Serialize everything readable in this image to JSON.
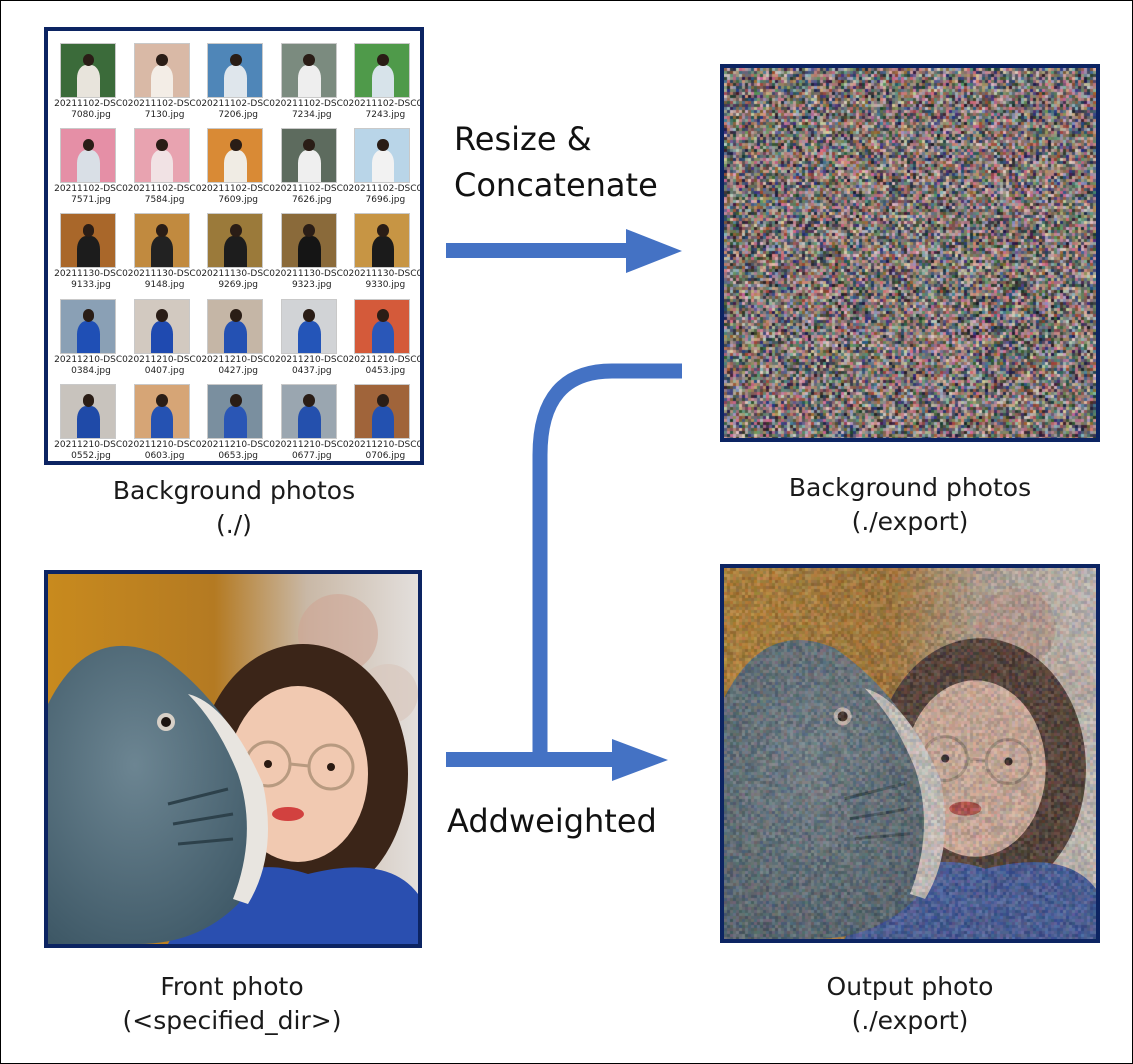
{
  "labels": {
    "resize": [
      "Resize &",
      "Concatenate"
    ],
    "addweighted": "Addweighted"
  },
  "captions": {
    "background_src": [
      "Background photos",
      "(./)"
    ],
    "background_export": [
      "Background photos",
      "(./export)"
    ],
    "front": [
      "Front photo",
      "(<specified_dir>)"
    ],
    "output": [
      "Output photo",
      "(./export)"
    ]
  },
  "thumbnails": [
    {
      "name": [
        "20211102-DSC0",
        "7080.jpg"
      ],
      "bg": "#3b6b3a",
      "fg": "#e8e4dc"
    },
    {
      "name": [
        "20211102-DSC0",
        "7130.jpg"
      ],
      "bg": "#d9b9a6",
      "fg": "#f3ede6"
    },
    {
      "name": [
        "20211102-DSC0",
        "7206.jpg"
      ],
      "bg": "#4f86b8",
      "fg": "#dfe6ec"
    },
    {
      "name": [
        "20211102-DSC0",
        "7234.jpg"
      ],
      "bg": "#7b8b7f",
      "fg": "#eeeeee"
    },
    {
      "name": [
        "20211102-DSC0",
        "7243.jpg"
      ],
      "bg": "#4f9a4a",
      "fg": "#d7e3ea"
    },
    {
      "name": [
        "20211102-DSC0",
        "7571.jpg"
      ],
      "bg": "#e58fa6",
      "fg": "#d9dfe6"
    },
    {
      "name": [
        "20211102-DSC0",
        "7584.jpg"
      ],
      "bg": "#e8a3b0",
      "fg": "#f1e2e4"
    },
    {
      "name": [
        "20211102-DSC0",
        "7609.jpg"
      ],
      "bg": "#d98a35",
      "fg": "#f0ece4"
    },
    {
      "name": [
        "20211102-DSC0",
        "7626.jpg"
      ],
      "bg": "#5d6b5e",
      "fg": "#efefef"
    },
    {
      "name": [
        "20211102-DSC0",
        "7696.jpg"
      ],
      "bg": "#b9d5e8",
      "fg": "#f2f2f2"
    },
    {
      "name": [
        "20211130-DSC0",
        "9133.jpg"
      ],
      "bg": "#a9672a",
      "fg": "#1c1c1c"
    },
    {
      "name": [
        "20211130-DSC0",
        "9148.jpg"
      ],
      "bg": "#c18a3f",
      "fg": "#222222"
    },
    {
      "name": [
        "20211130-DSC0",
        "9269.jpg"
      ],
      "bg": "#9b7a3a",
      "fg": "#1d1d1d"
    },
    {
      "name": [
        "20211130-DSC0",
        "9323.jpg"
      ],
      "bg": "#8a6a3a",
      "fg": "#151515"
    },
    {
      "name": [
        "20211130-DSC0",
        "9330.jpg"
      ],
      "bg": "#c79544",
      "fg": "#1b1b1b"
    },
    {
      "name": [
        "20211210-DSC0",
        "0384.jpg"
      ],
      "bg": "#8aa0b5",
      "fg": "#1f4fb5"
    },
    {
      "name": [
        "20211210-DSC0",
        "0407.jpg"
      ],
      "bg": "#d2c9c0",
      "fg": "#1f4ab0"
    },
    {
      "name": [
        "20211210-DSC0",
        "0427.jpg"
      ],
      "bg": "#c5b6a6",
      "fg": "#2451b3"
    },
    {
      "name": [
        "20211210-DSC0",
        "0437.jpg"
      ],
      "bg": "#d1d3d6",
      "fg": "#2455b8"
    },
    {
      "name": [
        "20211210-DSC0",
        "0453.jpg"
      ],
      "bg": "#d45a3a",
      "fg": "#2a57b8"
    },
    {
      "name": [
        "20211210-DSC0",
        "0552.jpg"
      ],
      "bg": "#c8c3bd",
      "fg": "#1f4aa8"
    },
    {
      "name": [
        "20211210-DSC0",
        "0603.jpg"
      ],
      "bg": "#d6a576",
      "fg": "#2552b2"
    },
    {
      "name": [
        "20211210-DSC0",
        "0653.jpg"
      ],
      "bg": "#7a8f9f",
      "fg": "#2a56b5"
    },
    {
      "name": [
        "20211210-DSC0",
        "0677.jpg"
      ],
      "bg": "#9aa6b0",
      "fg": "#2450ad"
    },
    {
      "name": [
        "20211210-DSC0",
        "0706.jpg"
      ],
      "bg": "#a0643a",
      "fg": "#2351b0"
    }
  ],
  "colors": {
    "arrow": "#4472c4",
    "panel_border": "#0c2462"
  }
}
